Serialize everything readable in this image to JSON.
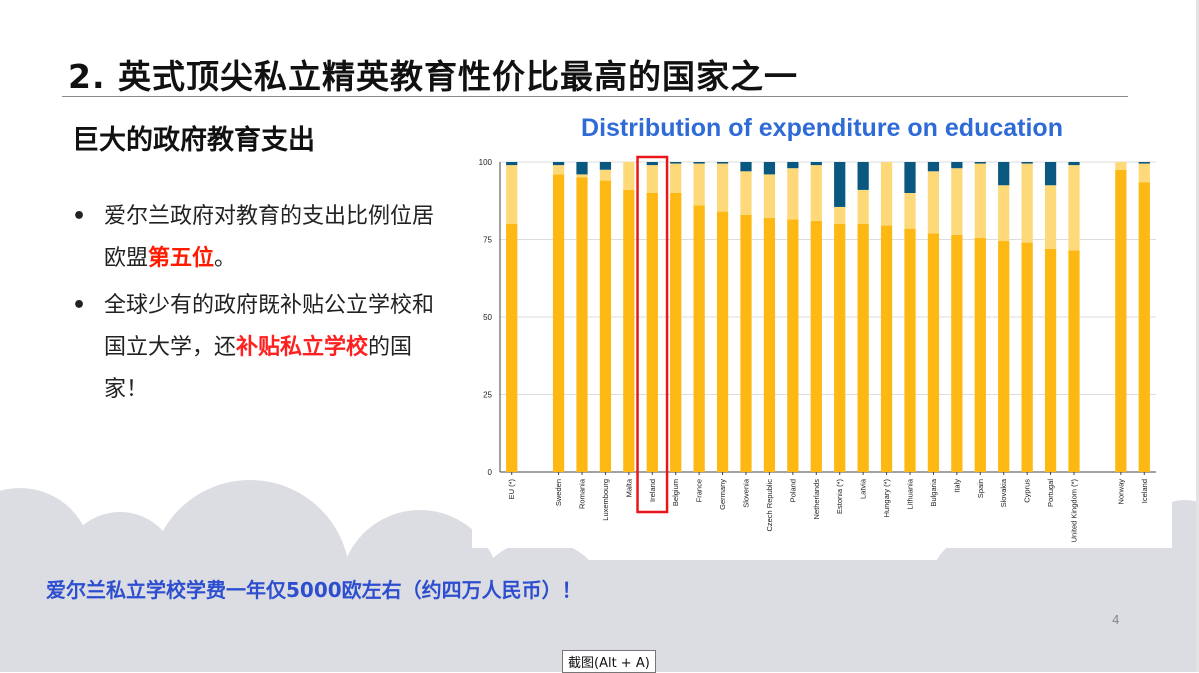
{
  "slide": {
    "title": "2. 英式顶尖私立精英教育性价比最高的国家之一",
    "subtitle": "巨大的政府教育支出",
    "bullets": [
      {
        "before": "爱尔兰政府对教育的支出比例位居欧盟",
        "highlight": "第五位",
        "after": "。"
      },
      {
        "before": "全球少有的政府既补贴公立学校和国立大学，还",
        "highlight": "补贴私立学校",
        "after": "的国家！"
      }
    ],
    "bullet_marker": "•",
    "bottom_note": "爱尔兰私立学校学费一年仅5000欧左右（约四万人民币）！",
    "page_number": "4",
    "tooltip": "截图(Alt + A)"
  },
  "colors": {
    "series": [
      "#fdb813",
      "#fdd97a",
      "#0a5780"
    ],
    "highlight_box": "#e8161b",
    "chart_title": "#2f6bd6",
    "bottom_note": "#2d4ecf"
  },
  "chart_data": {
    "type": "bar",
    "stacked": true,
    "title": "Distribution of expenditure on education",
    "ylim": [
      0,
      100
    ],
    "yticks": [
      "0",
      "25",
      "50",
      "75",
      "100"
    ],
    "grid": true,
    "highlighted_category": "Ireland",
    "categories": [
      "EU (*)",
      "",
      "Sweden",
      "Romania",
      "Luxembourg",
      "Malta",
      "Ireland",
      "Belgium",
      "France",
      "Germany",
      "Slovenia",
      "Czech Republic",
      "Poland",
      "Netherlands",
      "Estonia (*)",
      "Latvia",
      "Hungary (*)",
      "Lithuania",
      "Bulgaria",
      "Italy",
      "Spain",
      "Slovakia",
      "Cyprus",
      "Portugal",
      "United Kingdom (*)",
      "",
      "Norway",
      "Iceland"
    ],
    "series": [
      {
        "values": [
          80,
          null,
          96,
          95,
          94,
          91,
          90,
          90,
          86,
          84,
          83,
          82,
          81.5,
          81,
          80,
          80,
          79.5,
          78.5,
          77,
          76.5,
          75.5,
          74.5,
          74,
          72,
          71.5,
          null,
          97.5,
          93.5
        ]
      },
      {
        "values": [
          19,
          null,
          3,
          1,
          3.5,
          9,
          9,
          9.5,
          13.5,
          15.5,
          14,
          14,
          16.5,
          18,
          5.5,
          11,
          20.5,
          11.5,
          20,
          21.5,
          24,
          18,
          25.5,
          20.5,
          27.5,
          null,
          2.5,
          6
        ]
      },
      {
        "values": [
          1,
          null,
          1,
          4,
          2.5,
          0,
          1,
          0.5,
          0.5,
          0.5,
          3,
          4,
          2,
          1,
          14.5,
          9,
          0,
          10,
          3,
          2,
          0.5,
          7.5,
          0.5,
          7.5,
          1,
          null,
          0,
          0.5
        ]
      }
    ]
  }
}
